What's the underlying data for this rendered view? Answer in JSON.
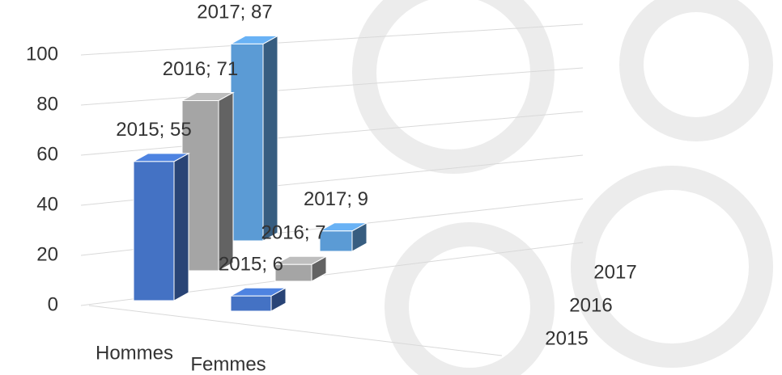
{
  "chart_data": {
    "type": "bar3d",
    "categories": [
      "Hommes",
      "Femmes"
    ],
    "series": [
      {
        "name": "2015",
        "color": "#4472c4",
        "values": [
          55,
          6
        ],
        "value_labels": [
          "2015; 55",
          "2015; 6"
        ]
      },
      {
        "name": "2016",
        "color": "#a5a5a5",
        "values": [
          71,
          7
        ],
        "value_labels": [
          "2016; 71",
          "2016; 7"
        ]
      },
      {
        "name": "2017",
        "color": "#5b9bd5",
        "values": [
          87,
          9
        ],
        "value_labels": [
          "2017; 87",
          "2017; 9"
        ]
      }
    ],
    "ylim": [
      0,
      100
    ],
    "yticks": [
      0,
      20,
      40,
      60,
      80,
      100
    ],
    "grid": true
  }
}
